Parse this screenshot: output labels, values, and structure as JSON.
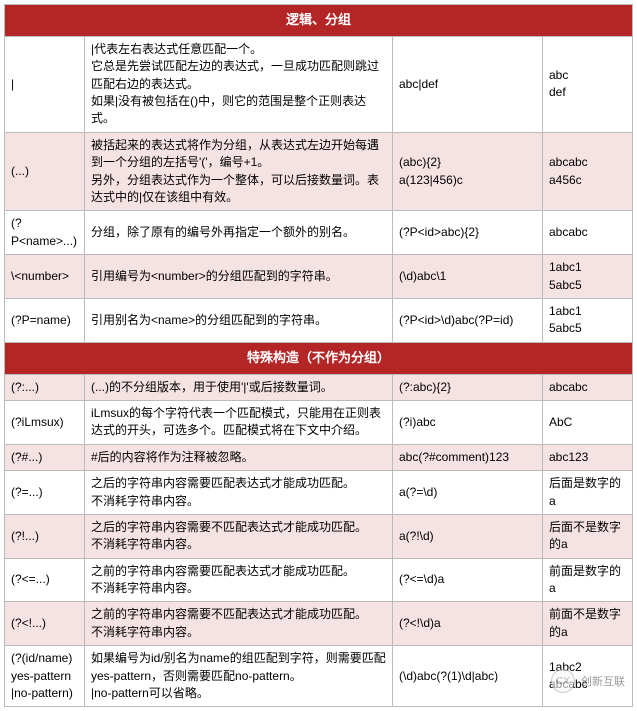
{
  "colors": {
    "header_bg": "#b42626",
    "header_fg": "#ffffff",
    "row_odd": "#ffffff",
    "row_even": "#f5e2e2",
    "border": "#bbbbbb"
  },
  "sections": [
    {
      "title": "逻辑、分组",
      "rows": [
        {
          "c1": "|",
          "c2": [
            "|代表左右表达式任意匹配一个。",
            "它总是先尝试匹配左边的表达式，一旦成功匹配则跳过匹配右边的表达式。",
            "如果|没有被包括在()中，则它的范围是整个正则表达式。"
          ],
          "c3": "abc|def",
          "c4": [
            "abc",
            "def"
          ]
        },
        {
          "c1": "(...)",
          "c2": [
            "被括起来的表达式将作为分组，从表达式左边开始每遇到一个分组的左括号'('，编号+1。",
            "另外，分组表达式作为一个整体，可以后接数量词。表达式中的|仅在该组中有效。"
          ],
          "c3": [
            "(abc){2}",
            "a(123|456)c"
          ],
          "c4": [
            "abcabc",
            "a456c"
          ]
        },
        {
          "c1": "(?P<name>...)",
          "c2": [
            "分组，除了原有的编号外再指定一个额外的别名。"
          ],
          "c3": "(?P<id>abc){2}",
          "c4": "abcabc"
        },
        {
          "c1": "\\<number>",
          "c2": [
            "引用编号为<number>的分组匹配到的字符串。"
          ],
          "c3": "(\\d)abc\\1",
          "c4": [
            "1abc1",
            "5abc5"
          ]
        },
        {
          "c1": "(?P=name)",
          "c2": [
            "引用别名为<name>的分组匹配到的字符串。"
          ],
          "c3": "(?P<id>\\d)abc(?P=id)",
          "c4": [
            "1abc1",
            "5abc5"
          ]
        }
      ]
    },
    {
      "title": "特殊构造（不作为分组）",
      "rows": [
        {
          "c1": "(?:...)",
          "c2": [
            "(...)的不分组版本，用于使用'|'或后接数量词。"
          ],
          "c3": "(?:abc){2}",
          "c4": "abcabc"
        },
        {
          "c1": "(?iLmsux)",
          "c2": [
            "iLmsux的每个字符代表一个匹配模式，只能用在正则表达式的开头，可选多个。匹配模式将在下文中介绍。"
          ],
          "c3": "(?i)abc",
          "c4": "AbC"
        },
        {
          "c1": "(?#...)",
          "c2": [
            "#后的内容将作为注释被忽略。"
          ],
          "c3": "abc(?#comment)123",
          "c4": "abc123"
        },
        {
          "c1": "(?=...)",
          "c2": [
            "之后的字符串内容需要匹配表达式才能成功匹配。",
            "不消耗字符串内容。"
          ],
          "c3": "a(?=\\d)",
          "c4": "后面是数字的a"
        },
        {
          "c1": "(?!...)",
          "c2": [
            "之后的字符串内容需要不匹配表达式才能成功匹配。",
            "不消耗字符串内容。"
          ],
          "c3": "a(?!\\d)",
          "c4": "后面不是数字的a"
        },
        {
          "c1": "(?<=...)",
          "c2": [
            "之前的字符串内容需要匹配表达式才能成功匹配。",
            "不消耗字符串内容。"
          ],
          "c3": "(?<=\\d)a",
          "c4": "前面是数字的a"
        },
        {
          "c1": "(?<!...)",
          "c2": [
            "之前的字符串内容需要不匹配表达式才能成功匹配。",
            "不消耗字符串内容。"
          ],
          "c3": "(?<!\\d)a",
          "c4": "前面不是数字的a"
        },
        {
          "c1": [
            "(?(id/name)",
            "yes-pattern",
            "|no-pattern)"
          ],
          "c2": [
            "如果编号为id/别名为name的组匹配到字符，则需要匹配yes-pattern，否则需要匹配no-pattern。",
            "|no-pattern可以省略。"
          ],
          "c3": "(\\d)abc(?(1)\\d|abc)",
          "c4": [
            "1abc2",
            "abcabc"
          ]
        }
      ]
    }
  ],
  "watermark": {
    "logo_text": "CX",
    "label": "创新互联"
  }
}
